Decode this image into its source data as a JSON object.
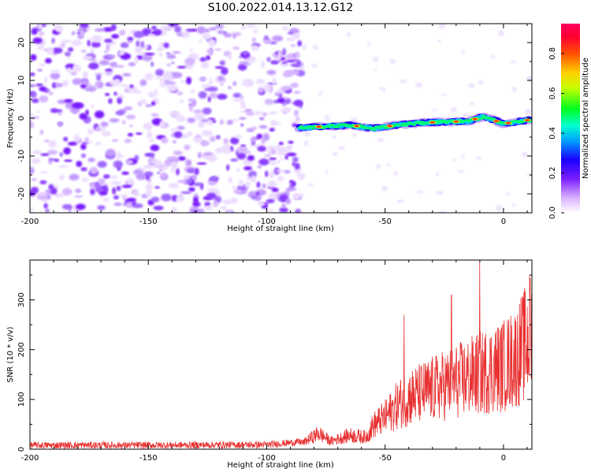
{
  "figure_title": "S100.2022.014.13.12.G12",
  "chart_data": [
    {
      "type": "heatmap",
      "xlabel": "Height of straight line (km)",
      "ylabel": "Frequency (Hz)",
      "xlim": [
        -200,
        12
      ],
      "ylim": [
        -25,
        25
      ],
      "x_ticks": [
        -200,
        -150,
        -100,
        -50,
        0
      ],
      "y_ticks": [
        -20,
        -10,
        0,
        10,
        20
      ],
      "x_tick_labels": [
        "-200",
        "-150",
        "-100",
        "-50",
        "0"
      ],
      "y_tick_labels": [
        "-20",
        "-10",
        "0",
        "10",
        "20"
      ],
      "colorbar": {
        "label": "Normalized spectral amplitude",
        "range": [
          0,
          0.95
        ],
        "ticks": [
          0.0,
          0.2,
          0.4,
          0.6,
          0.8
        ],
        "tick_labels": [
          "0.0",
          "0.2",
          "0.4",
          "0.6",
          "0.8"
        ],
        "colormap": [
          "#ffffff",
          "#b070ff",
          "#2000ff",
          "#00e0ff",
          "#00ff40",
          "#ffff00",
          "#ff3000",
          "#ff0060"
        ]
      },
      "noise_region": {
        "x_range": [
          -200,
          -85
        ],
        "amplitude": "low"
      },
      "signal_track": {
        "description_points": [
          {
            "x": -86,
            "y": -2.5
          },
          {
            "x": -75,
            "y": -2.2
          },
          {
            "x": -65,
            "y": -1.8
          },
          {
            "x": -55,
            "y": -2.7
          },
          {
            "x": -45,
            "y": -1.8
          },
          {
            "x": -35,
            "y": -1.2
          },
          {
            "x": -25,
            "y": -1.0
          },
          {
            "x": -15,
            "y": -0.8
          },
          {
            "x": -8,
            "y": 0.5
          },
          {
            "x": 0,
            "y": -1.5
          },
          {
            "x": 10,
            "y": -0.5
          }
        ]
      }
    },
    {
      "type": "line",
      "xlabel": "Height of straight line (km)",
      "ylabel": "SNR (10 * v/v)",
      "xlim": [
        -200,
        12
      ],
      "ylim": [
        0,
        380
      ],
      "x_ticks": [
        -200,
        -150,
        -100,
        -50,
        0
      ],
      "y_ticks": [
        0,
        100,
        200,
        300
      ],
      "x_tick_labels": [
        "-200",
        "-150",
        "-100",
        "-50",
        "0"
      ],
      "y_tick_labels": [
        "0",
        "100",
        "200",
        "300"
      ],
      "line_color": "#e83030",
      "envelope": {
        "x": [
          -200,
          -150,
          -100,
          -85,
          -78,
          -73,
          -65,
          -58,
          -55,
          -50,
          -45,
          -40,
          -35,
          -30,
          -25,
          -20,
          -15,
          -10,
          -5,
          0,
          5,
          10,
          12
        ],
        "y": [
          8,
          8,
          9,
          15,
          40,
          20,
          35,
          30,
          60,
          80,
          110,
          130,
          140,
          150,
          160,
          170,
          180,
          190,
          200,
          210,
          230,
          270,
          290
        ]
      },
      "peaks": [
        {
          "x": -42,
          "y": 270
        },
        {
          "x": -22,
          "y": 310
        },
        {
          "x": -10,
          "y": 375
        },
        {
          "x": 11,
          "y": 350
        }
      ]
    }
  ]
}
